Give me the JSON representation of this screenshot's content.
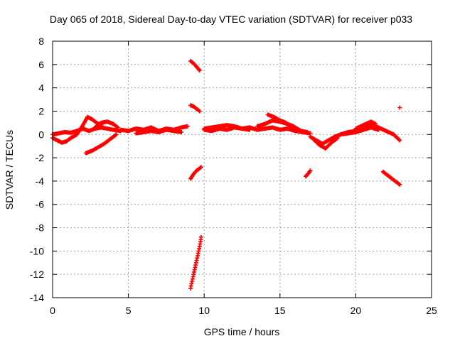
{
  "chart_data": {
    "type": "scatter",
    "title": "Day 065 of 2018, Sidereal Day-to-day VTEC variation (SDTVAR) for receiver p033",
    "xlabel": "GPS time / hours",
    "ylabel": "SDTVAR / TECUs",
    "xlim": [
      0,
      25
    ],
    "ylim": [
      -14,
      8
    ],
    "xticks": [
      0,
      5,
      10,
      15,
      20,
      25
    ],
    "yticks": [
      -14,
      -12,
      -10,
      -8,
      -6,
      -4,
      -2,
      0,
      2,
      4,
      6,
      8
    ],
    "grid": true,
    "marker": "+",
    "series": [
      {
        "name": "p033",
        "color": "#ff0000",
        "tracks": [
          {
            "x": [
              0.0,
              0.3,
              0.6,
              0.9,
              1.2
            ],
            "y": [
              -0.3,
              -0.5,
              -0.7,
              -0.6,
              -0.3
            ]
          },
          {
            "x": [
              0.0,
              0.4,
              0.8,
              1.2,
              1.6,
              2.0,
              2.4,
              2.8,
              3.2,
              3.6,
              4.0,
              4.5
            ],
            "y": [
              0.0,
              0.1,
              0.2,
              0.15,
              0.3,
              0.5,
              0.3,
              0.5,
              0.6,
              0.5,
              0.4,
              0.3
            ]
          },
          {
            "x": [
              1.2,
              1.6,
              2.0,
              2.3,
              2.6,
              2.9,
              3.2
            ],
            "y": [
              -0.3,
              0.0,
              0.8,
              1.5,
              1.3,
              1.0,
              0.8
            ]
          },
          {
            "x": [
              2.8,
              3.2,
              3.6,
              4.0,
              4.3
            ],
            "y": [
              0.6,
              1.0,
              1.1,
              0.9,
              0.6
            ]
          },
          {
            "x": [
              2.2,
              2.6,
              3.0,
              3.4,
              3.8,
              4.2
            ],
            "y": [
              -1.6,
              -1.4,
              -1.1,
              -0.8,
              -0.4,
              0.0
            ]
          },
          {
            "x": [
              4.5,
              5.0,
              5.5,
              6.0,
              6.5,
              7.0,
              7.5,
              8.0,
              8.5,
              8.9
            ],
            "y": [
              0.4,
              0.3,
              0.5,
              0.4,
              0.6,
              0.3,
              0.5,
              0.4,
              0.6,
              0.7
            ]
          },
          {
            "x": [
              5.5,
              6.0,
              6.5,
              7.0,
              7.5,
              8.0,
              8.5
            ],
            "y": [
              0.1,
              0.2,
              0.3,
              0.2,
              0.4,
              0.3,
              0.2
            ]
          },
          {
            "x": [
              9.1,
              9.3,
              9.5,
              9.7
            ],
            "y": [
              6.3,
              6.1,
              5.8,
              5.5
            ]
          },
          {
            "x": [
              9.1,
              9.3,
              9.5,
              9.7
            ],
            "y": [
              2.5,
              2.4,
              2.2,
              2.0
            ]
          },
          {
            "x": [
              9.1,
              9.3,
              9.5,
              9.8
            ],
            "y": [
              -3.8,
              -3.4,
              -3.1,
              -2.8
            ]
          },
          {
            "x": [
              9.1,
              9.3,
              9.5,
              9.7,
              9.8
            ],
            "y": [
              -13.2,
              -12.0,
              -10.8,
              -9.6,
              -8.8
            ]
          },
          {
            "x": [
              10.0,
              10.5,
              11.0,
              11.5,
              12.0,
              12.5,
              13.0,
              13.5,
              14.0,
              14.5,
              15.0,
              15.5,
              16.0,
              16.5,
              17.0
            ],
            "y": [
              0.5,
              0.6,
              0.7,
              0.8,
              0.7,
              0.5,
              0.6,
              0.4,
              0.5,
              0.6,
              0.4,
              0.5,
              0.3,
              0.2,
              0.1
            ]
          },
          {
            "x": [
              10.0,
              10.5,
              11.0,
              11.5,
              12.0,
              12.5,
              13.0
            ],
            "y": [
              0.4,
              0.3,
              0.5,
              0.4,
              0.6,
              0.5,
              0.4
            ]
          },
          {
            "x": [
              13.5,
              14.0,
              14.5,
              15.0,
              15.5,
              15.9
            ],
            "y": [
              0.7,
              0.9,
              1.2,
              1.1,
              0.9,
              0.7
            ]
          },
          {
            "x": [
              14.2,
              14.6,
              15.0,
              15.4
            ],
            "y": [
              1.7,
              1.5,
              1.2,
              1.0
            ]
          },
          {
            "x": [
              15.2,
              15.6,
              16.0,
              16.4,
              16.8
            ],
            "y": [
              1.1,
              0.8,
              0.6,
              0.3,
              0.2
            ]
          },
          {
            "x": [
              16.7,
              16.9,
              17.0
            ],
            "y": [
              -3.6,
              -3.3,
              -3.1
            ]
          },
          {
            "x": [
              17.0,
              17.4,
              17.8,
              18.2,
              18.6,
              19.0,
              19.5,
              20.0,
              20.5,
              21.0,
              21.5,
              22.0,
              22.5,
              22.9
            ],
            "y": [
              -0.2,
              -0.5,
              -0.8,
              -0.5,
              -0.2,
              0.0,
              0.2,
              0.3,
              0.6,
              0.8,
              0.6,
              0.3,
              0.0,
              -0.5
            ]
          },
          {
            "x": [
              17.2,
              17.6,
              18.0,
              18.4,
              18.8
            ],
            "y": [
              -0.4,
              -0.9,
              -1.2,
              -0.7,
              -0.3
            ]
          },
          {
            "x": [
              19.0,
              19.5,
              20.0,
              20.5,
              21.0,
              21.5
            ],
            "y": [
              0.0,
              0.1,
              0.2,
              0.4,
              0.6,
              0.4
            ]
          },
          {
            "x": [
              20.0,
              20.5,
              21.0,
              21.3
            ],
            "y": [
              0.5,
              0.8,
              1.1,
              0.9
            ]
          },
          {
            "x": [
              21.8,
              22.1,
              22.4,
              22.7,
              22.9
            ],
            "y": [
              -3.2,
              -3.5,
              -3.8,
              -4.1,
              -4.3
            ]
          },
          {
            "x": [
              22.9
            ],
            "y": [
              2.3
            ]
          }
        ]
      }
    ]
  }
}
